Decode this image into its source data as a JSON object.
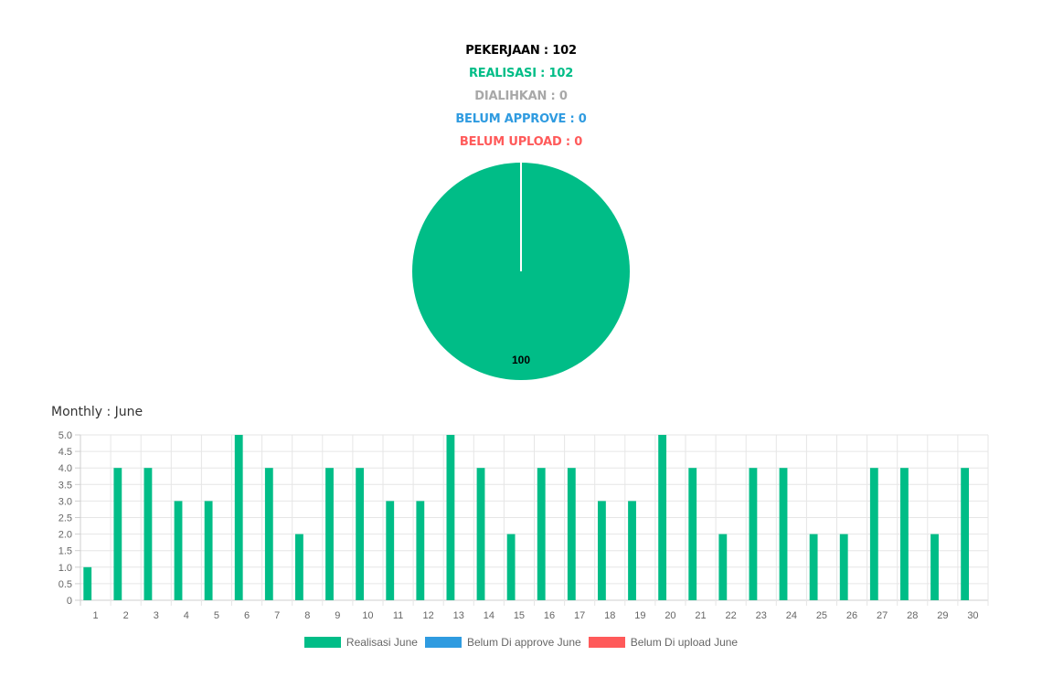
{
  "stats": {
    "pekerjaan": "PEKERJAAN : 102",
    "realisasi": "REALISASI : 102",
    "dialihkan": "DIALIHKAN : 0",
    "belum_approve": "BELUM APPROVE : 0",
    "belum_upload": "BELUM UPLOAD : 0"
  },
  "colors": {
    "pekerjaan": "#000000",
    "realisasi": "#00bd87",
    "dialihkan": "#a8a8a8",
    "belum_approve": "#2f9be0",
    "belum_upload": "#ff5a5a"
  },
  "monthly_title": "Monthly : June",
  "chart_data": [
    {
      "type": "pie",
      "slices": [
        {
          "label": "Realisasi",
          "value": 100,
          "color": "#00bd87"
        },
        {
          "label": "Dialihkan",
          "value": 0,
          "color": "#a8a8a8"
        },
        {
          "label": "Belum Approve",
          "value": 0,
          "color": "#2f9be0"
        },
        {
          "label": "Belum Upload",
          "value": 0,
          "color": "#ff5a5a"
        }
      ],
      "data_label": "100"
    },
    {
      "type": "bar",
      "categories": [
        "1",
        "2",
        "3",
        "4",
        "5",
        "6",
        "7",
        "8",
        "9",
        "10",
        "11",
        "12",
        "13",
        "14",
        "15",
        "16",
        "17",
        "18",
        "19",
        "20",
        "21",
        "22",
        "23",
        "24",
        "25",
        "26",
        "27",
        "28",
        "29",
        "30"
      ],
      "series": [
        {
          "name": "Realisasi June",
          "color": "#00bd87",
          "values": [
            1,
            4,
            4,
            3,
            3,
            5,
            4,
            2,
            4,
            4,
            3,
            3,
            5,
            4,
            2,
            4,
            4,
            3,
            3,
            5,
            4,
            2,
            4,
            4,
            2,
            2,
            4,
            4,
            2,
            4
          ]
        },
        {
          "name": "Belum Di approve June",
          "color": "#2f9be0",
          "values": [
            0,
            0,
            0,
            0,
            0,
            0,
            0,
            0,
            0,
            0,
            0,
            0,
            0,
            0,
            0,
            0,
            0,
            0,
            0,
            0,
            0,
            0,
            0,
            0,
            0,
            0,
            0,
            0,
            0,
            0
          ]
        },
        {
          "name": "Belum Di upload June",
          "color": "#ff5a5a",
          "values": [
            0,
            0,
            0,
            0,
            0,
            0,
            0,
            0,
            0,
            0,
            0,
            0,
            0,
            0,
            0,
            0,
            0,
            0,
            0,
            0,
            0,
            0,
            0,
            0,
            0,
            0,
            0,
            0,
            0,
            0
          ]
        }
      ],
      "ylim": [
        0,
        5
      ],
      "yticks": [
        "0",
        "0.5",
        "1.0",
        "1.5",
        "2.0",
        "2.5",
        "3.0",
        "3.5",
        "4.0",
        "4.5",
        "5.0"
      ],
      "grid": true,
      "legend": "bottom"
    }
  ]
}
